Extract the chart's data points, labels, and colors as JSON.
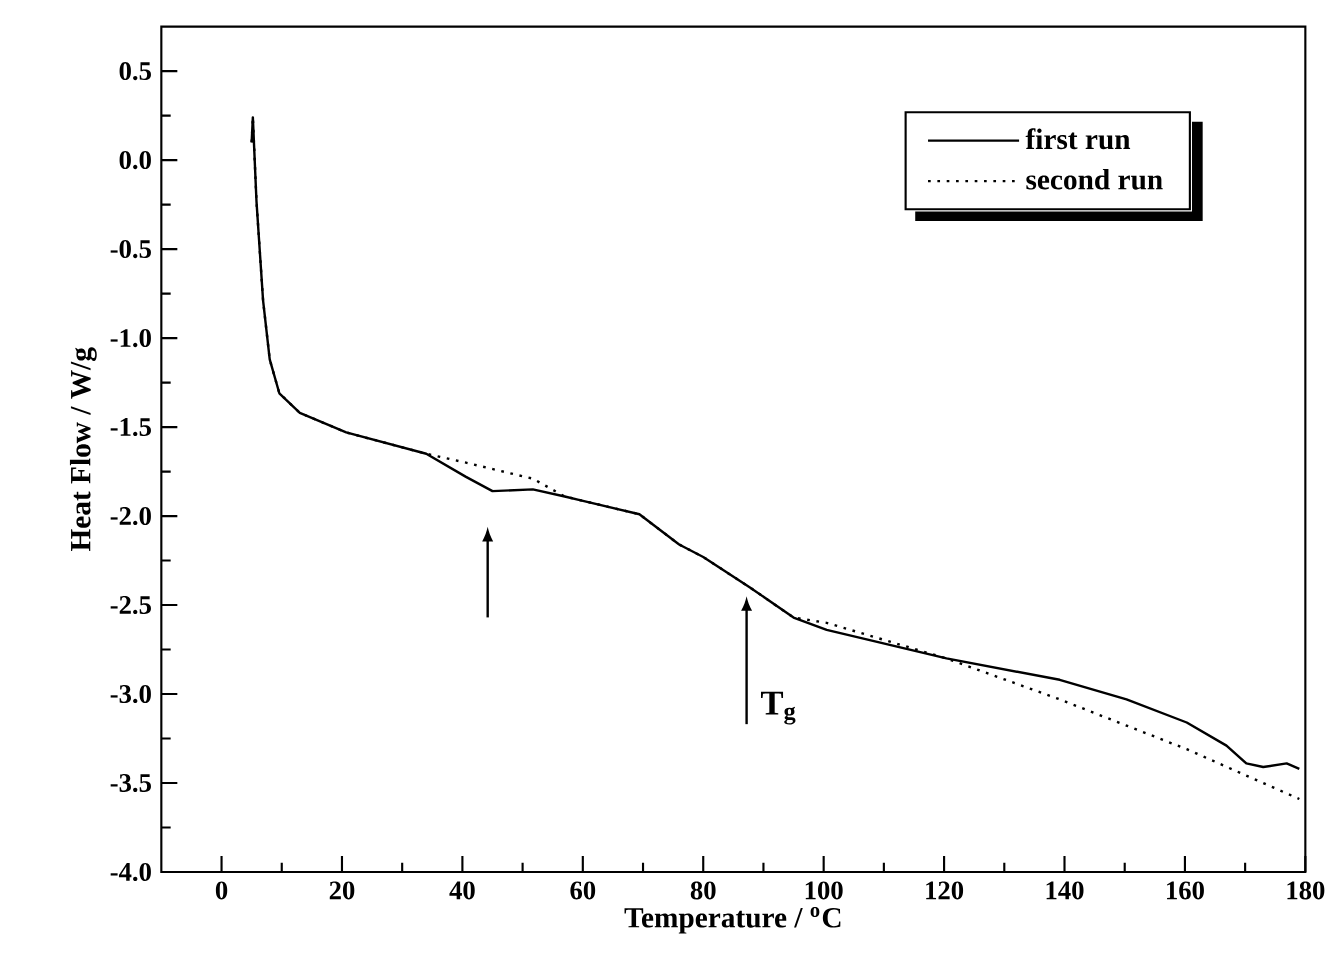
{
  "chart_data": {
    "type": "line",
    "xlabel": "Temperature / $^{o}$C",
    "ylabel": "Heat Flow / W/g",
    "xlim": [
      -10,
      180
    ],
    "xticks": [
      0,
      20,
      40,
      60,
      80,
      100,
      120,
      140,
      160,
      180
    ],
    "ylim": [
      -4.0,
      0.75
    ],
    "yticks": [
      0.5,
      {
        "value": 0,
        "label": "0.0"
      },
      -0.5,
      {
        "value": -1,
        "label": "-1.0"
      },
      -1.5,
      {
        "value": -2,
        "label": "-2.0"
      },
      -2.5,
      {
        "value": -3,
        "label": "-3.0"
      },
      -3.5,
      {
        "value": -4,
        "label": "-4.0"
      }
    ],
    "legend": "top right",
    "grid": false,
    "marker": "none",
    "annotations": [
      {
        "text": "T$_{g}$",
        "x": 87.2,
        "y": -2.45
      }
    ],
    "series": [
      {
        "name": "first run",
        "color": "#000000",
        "line_style": "solid",
        "x": [
          5.0,
          5.2,
          5.8,
          6.9,
          8.0,
          9.6,
          13,
          20.7,
          34,
          40.6,
          45,
          51.7,
          57,
          59.5,
          69.4,
          76,
          80,
          87.7,
          95,
          100.5,
          120.4,
          139.2,
          150.3,
          160.3,
          166.9,
          170.2,
          173,
          176.9,
          179
        ],
        "values": [
          0.1,
          0.24,
          -0.23,
          -0.79,
          -1.12,
          -1.31,
          -1.42,
          -1.53,
          -1.65,
          -1.78,
          -1.86,
          -1.85,
          -1.89,
          -1.91,
          -1.99,
          -2.16,
          -2.23,
          -2.4,
          -2.57,
          -2.64,
          -2.8,
          -2.92,
          -3.03,
          -3.16,
          -3.29,
          -3.39,
          -3.41,
          -3.39,
          -3.42
        ]
      },
      {
        "name": "second run",
        "color": "#000000",
        "line_style": "dotted",
        "x": [
          5.0,
          5.2,
          5.8,
          6.9,
          8.0,
          9.6,
          13,
          20.7,
          34,
          40.6,
          51.7,
          57,
          59.5,
          69.4,
          76,
          80,
          87.7,
          95,
          100.5,
          120.4,
          139.2,
          160.3,
          179
        ],
        "values": [
          0.1,
          0.24,
          -0.23,
          -0.79,
          -1.12,
          -1.31,
          -1.42,
          -1.53,
          -1.65,
          -1.7,
          -1.79,
          -1.89,
          -1.91,
          -1.99,
          -2.16,
          -2.23,
          -2.4,
          -2.57,
          -2.6,
          -2.8,
          -3.03,
          -3.31,
          -3.59
        ]
      }
    ]
  }
}
